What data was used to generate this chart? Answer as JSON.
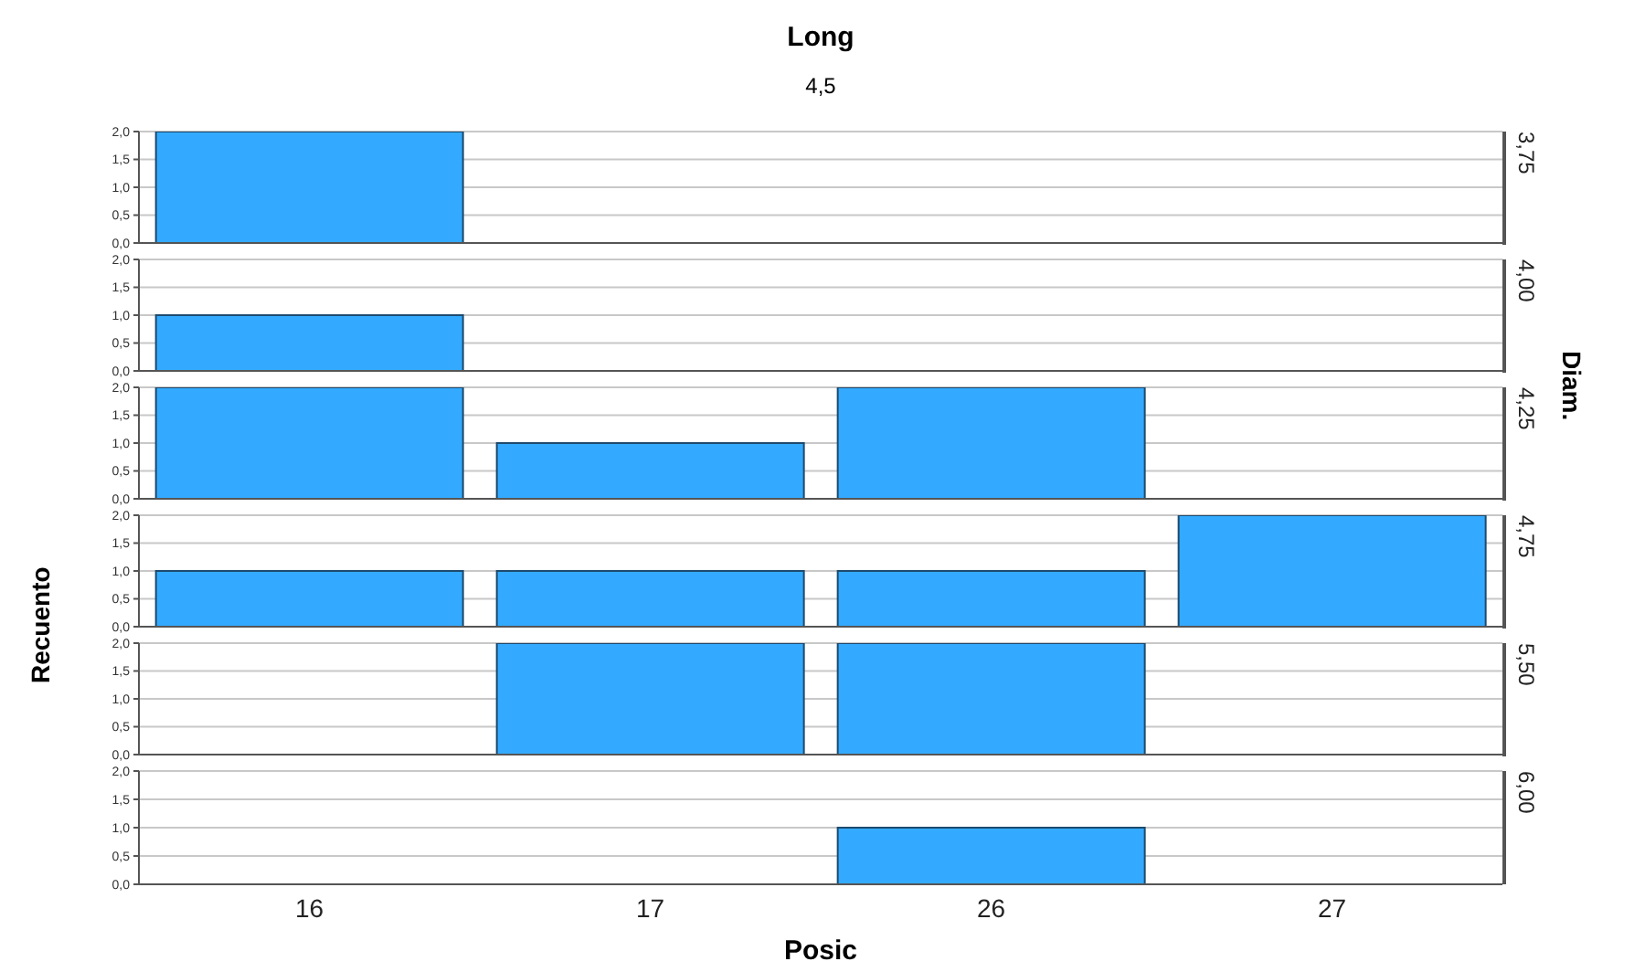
{
  "chart_data": [
    {
      "type": "bar",
      "title": "Long",
      "subtitle": "4,5",
      "y2label": "3,75",
      "categories": [
        "16",
        "17",
        "26",
        "27"
      ],
      "values": [
        2,
        0,
        0,
        0
      ],
      "color": "#33aaff",
      "ylim": [
        0,
        2
      ],
      "yticks": [
        {
          "value": 0,
          "label": "0,0"
        },
        {
          "value": 0.5,
          "label": "0,5"
        },
        {
          "value": 1,
          "label": "1,0"
        },
        {
          "value": 1.5,
          "label": "1,5"
        },
        {
          "value": 2,
          "label": "2,0"
        }
      ],
      "grid": "y",
      "tick_labels": "y"
    },
    {
      "type": "bar",
      "y2label": "4,00",
      "categories": [
        "16",
        "17",
        "26",
        "27"
      ],
      "values": [
        1,
        0,
        0,
        0
      ],
      "color": "#33aaff",
      "ylim": [
        0,
        2
      ],
      "yticks": [
        {
          "value": 0,
          "label": "0,0"
        },
        {
          "value": 0.5,
          "label": "0,5"
        },
        {
          "value": 1,
          "label": "1,0"
        },
        {
          "value": 1.5,
          "label": "1,5"
        },
        {
          "value": 2,
          "label": "2,0"
        }
      ],
      "grid": "y",
      "tick_labels": "y"
    },
    {
      "type": "bar",
      "annotations": [
        "Diam."
      ],
      "y2label": "4,25",
      "categories": [
        "16",
        "17",
        "26",
        "27"
      ],
      "values": [
        2,
        1,
        2,
        0
      ],
      "color": "#33aaff",
      "ylim": [
        0,
        2
      ],
      "yticks": [
        {
          "value": 0,
          "label": "0,0"
        },
        {
          "value": 0.5,
          "label": "0,5"
        },
        {
          "value": 1,
          "label": "1,0"
        },
        {
          "value": 1.5,
          "label": "1,5"
        },
        {
          "value": 2,
          "label": "2,0"
        }
      ],
      "grid": "y",
      "tick_labels": "y"
    },
    {
      "type": "bar",
      "ylabel": "Recuento",
      "y2label": "4,75",
      "categories": [
        "16",
        "17",
        "26",
        "27"
      ],
      "values": [
        1,
        1,
        1,
        2
      ],
      "color": "#33aaff",
      "ylim": [
        0,
        2
      ],
      "yticks": [
        {
          "value": 0,
          "label": "0,0"
        },
        {
          "value": 0.5,
          "label": "0,5"
        },
        {
          "value": 1,
          "label": "1,0"
        },
        {
          "value": 1.5,
          "label": "1,5"
        },
        {
          "value": 2,
          "label": "2,0"
        }
      ],
      "grid": "y",
      "tick_labels": "y"
    },
    {
      "type": "bar",
      "y2label": "5,50",
      "categories": [
        "16",
        "17",
        "26",
        "27"
      ],
      "values": [
        0,
        2,
        2,
        0
      ],
      "color": "#33aaff",
      "ylim": [
        0,
        2
      ],
      "yticks": [
        {
          "value": 0,
          "label": "0,0"
        },
        {
          "value": 0.5,
          "label": "0,5"
        },
        {
          "value": 1,
          "label": "1,0"
        },
        {
          "value": 1.5,
          "label": "1,5"
        },
        {
          "value": 2,
          "label": "2,0"
        }
      ],
      "grid": "y",
      "tick_labels": "y"
    },
    {
      "type": "bar",
      "y2label": "6,00",
      "xlabel": "Posic",
      "categories": [
        "16",
        "17",
        "26",
        "27"
      ],
      "values": [
        0,
        0,
        1,
        0
      ],
      "color": "#33aaff",
      "ylim": [
        0,
        2
      ],
      "yticks": [
        {
          "value": 0,
          "label": "0,0"
        },
        {
          "value": 0.5,
          "label": "0,5"
        },
        {
          "value": 1,
          "label": "1,0"
        },
        {
          "value": 1.5,
          "label": "1,5"
        },
        {
          "value": 2,
          "label": "2,0"
        }
      ],
      "grid": "y"
    }
  ]
}
